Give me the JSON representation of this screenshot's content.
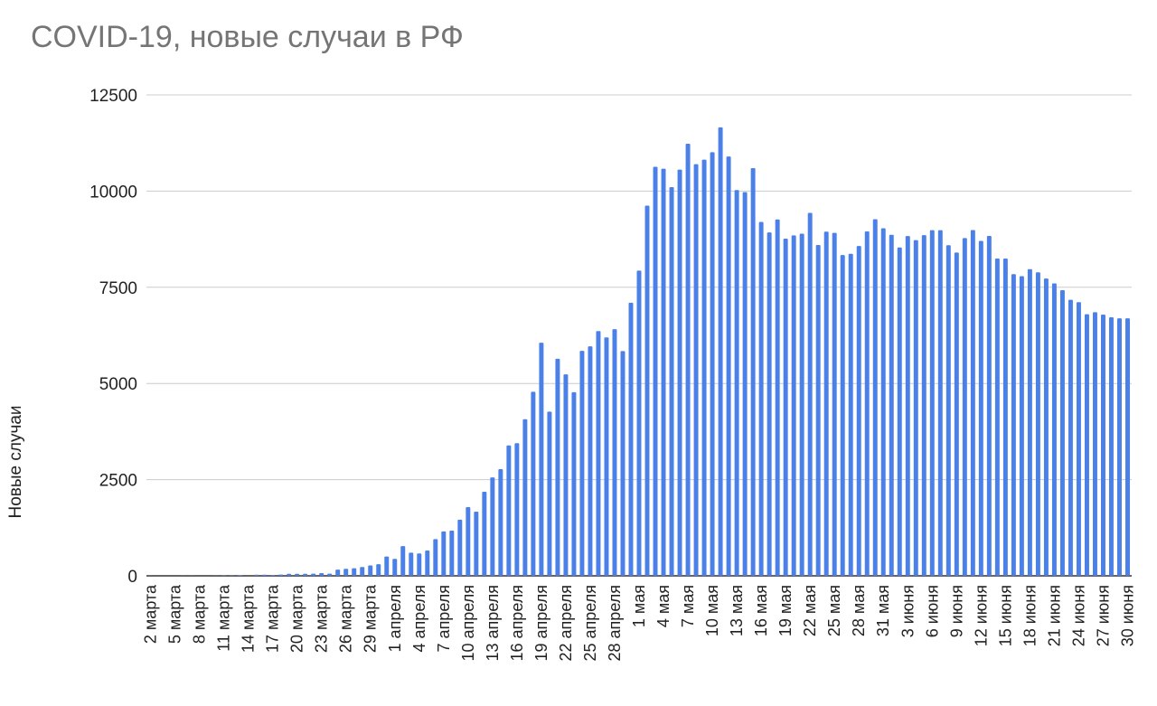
{
  "chart_data": {
    "type": "bar",
    "title": "COVID-19, новые случаи в РФ",
    "xlabel": "",
    "ylabel": "Новые случаи",
    "ylim": [
      0,
      12500
    ],
    "yticks": [
      0,
      2500,
      5000,
      7500,
      10000,
      12500
    ],
    "grid": true,
    "legend": "none",
    "bar_color": "#4a80e8",
    "start_label": "2 марта",
    "categories": [
      "2 марта",
      "3 марта",
      "4 марта",
      "5 марта",
      "6 марта",
      "7 марта",
      "8 марта",
      "9 марта",
      "10 марта",
      "11 марта",
      "12 марта",
      "13 марта",
      "14 марта",
      "15 марта",
      "16 марта",
      "17 марта",
      "18 марта",
      "19 марта",
      "20 марта",
      "21 марта",
      "22 марта",
      "23 марта",
      "24 марта",
      "25 марта",
      "26 марта",
      "27 марта",
      "28 марта",
      "29 марта",
      "30 марта",
      "31 марта",
      "1 апреля",
      "2 апреля",
      "3 апреля",
      "4 апреля",
      "5 апреля",
      "6 апреля",
      "7 апреля",
      "8 апреля",
      "9 апреля",
      "10 апреля",
      "11 апреля",
      "12 апреля",
      "13 апреля",
      "14 апреля",
      "15 апреля",
      "16 апреля",
      "17 апреля",
      "18 апреля",
      "19 апреля",
      "20 апреля",
      "21 апреля",
      "22 апреля",
      "23 апреля",
      "24 апреля",
      "25 апреля",
      "26 апреля",
      "27 апреля",
      "28 апреля",
      "29 апреля",
      "30 апреля",
      "1 мая",
      "2 мая",
      "3 мая",
      "4 мая",
      "5 мая",
      "6 мая",
      "7 мая",
      "8 мая",
      "9 мая",
      "10 мая",
      "11 мая",
      "12 мая",
      "13 мая",
      "14 мая",
      "15 мая",
      "16 мая",
      "17 мая",
      "18 мая",
      "19 мая",
      "20 мая",
      "21 мая",
      "22 мая",
      "23 мая",
      "24 мая",
      "25 мая",
      "26 мая",
      "27 мая",
      "28 мая",
      "29 мая",
      "30 мая",
      "31 мая",
      "1 июня",
      "2 июня",
      "3 июня",
      "4 июня",
      "5 июня",
      "6 июня",
      "7 июня",
      "8 июня",
      "9 июня",
      "10 июня",
      "11 июня",
      "12 июня",
      "13 июня",
      "14 июня",
      "15 июня",
      "16 июня",
      "17 июня",
      "18 июня",
      "19 июня",
      "20 июня",
      "21 июня",
      "22 июня",
      "23 июня",
      "24 июня",
      "25 июня",
      "26 июня",
      "27 июня",
      "28 июня",
      "29 июня",
      "30 июня"
    ],
    "tick_labels": [
      "2 марта",
      "5 марта",
      "8 марта",
      "11 марта",
      "14 марта",
      "17 марта",
      "20 марта",
      "23 марта",
      "26 марта",
      "29 марта",
      "1 апреля",
      "4 апреля",
      "7 апреля",
      "10 апреля",
      "13 апреля",
      "16 апреля",
      "19 апреля",
      "22 апреля",
      "25 апреля",
      "28 апреля",
      "1 мая",
      "4 мая",
      "7 мая",
      "10 мая",
      "13 мая",
      "16 мая",
      "19 мая",
      "22 мая",
      "25 мая",
      "28 мая",
      "31 мая",
      "3 июня",
      "6 июня",
      "9 июня",
      "12 июня",
      "15 июня",
      "18 июня",
      "21 июня",
      "24 июня",
      "27 июня",
      "30 июня"
    ],
    "tick_every": 3,
    "values": [
      2,
      1,
      0,
      1,
      2,
      4,
      0,
      0,
      3,
      8,
      6,
      14,
      0,
      29,
      30,
      21,
      33,
      52,
      53,
      54,
      57,
      71,
      57,
      163,
      182,
      196,
      228,
      270,
      302,
      501,
      440,
      771,
      601,
      582,
      658,
      954,
      1154,
      1175,
      1459,
      1786,
      1667,
      2186,
      2558,
      2774,
      3388,
      3448,
      4070,
      4785,
      6060,
      4268,
      5642,
      5236,
      4774,
      5849,
      5966,
      6361,
      6198,
      6411,
      5841,
      7099,
      7933,
      9623,
      10633,
      10581,
      10102,
      10559,
      11231,
      10699,
      10817,
      11012,
      11656,
      10899,
      10028,
      9974,
      10598,
      9200,
      8926,
      9263,
      8764,
      8849,
      8894,
      9434,
      8599,
      8946,
      8915,
      8338,
      8371,
      8572,
      8952,
      9268,
      9035,
      8863,
      8536,
      8831,
      8726,
      8855,
      8985,
      8984,
      8595,
      8404,
      8779,
      8987,
      8706,
      8835,
      8248,
      8246,
      7843,
      7790,
      7972,
      7889,
      7728,
      7600,
      7425,
      7176,
      7113,
      6800,
      6852,
      6791,
      6719,
      6693,
      6693
    ]
  }
}
